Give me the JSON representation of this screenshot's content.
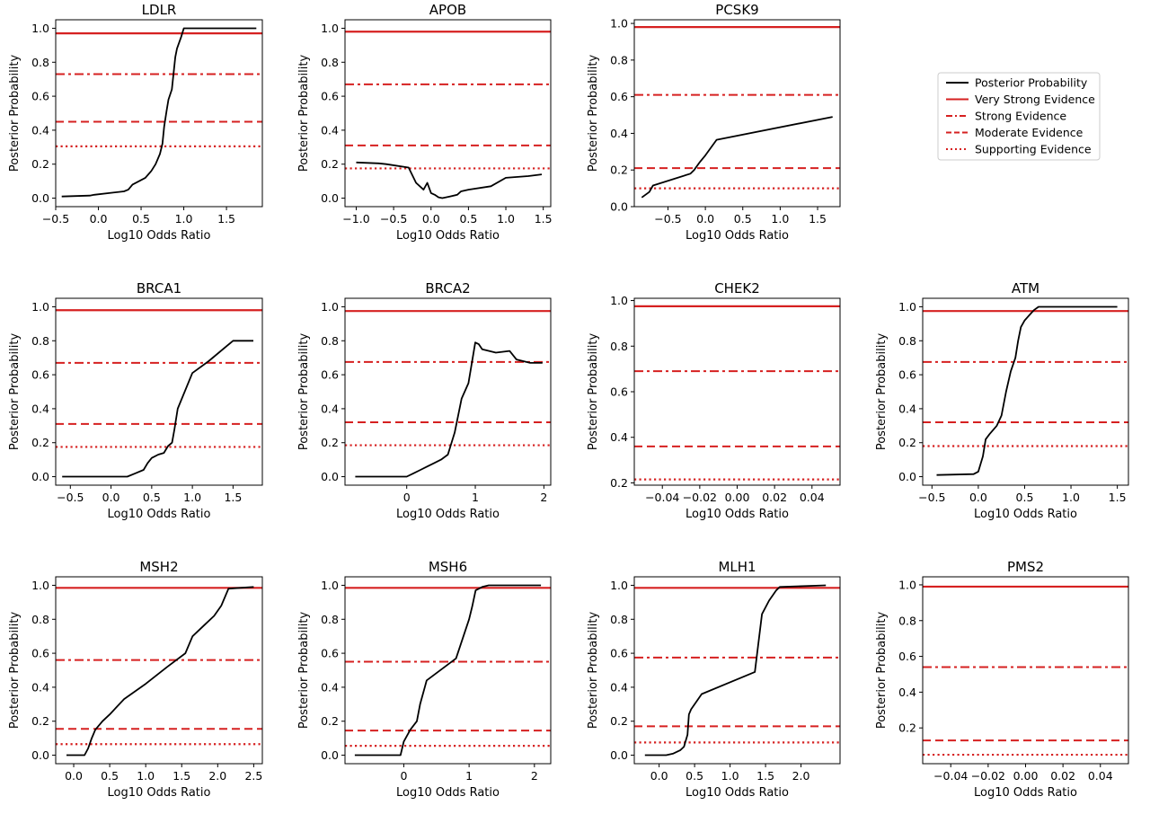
{
  "figure": {
    "legend": [
      {
        "label": "Posterior Probability",
        "color": "#000000",
        "style": "solid"
      },
      {
        "label": "Very Strong Evidence",
        "color": "#d62020",
        "style": "solid"
      },
      {
        "label": "Strong Evidence",
        "color": "#d62020",
        "style": "dashdot"
      },
      {
        "label": "Moderate Evidence",
        "color": "#d62020",
        "style": "dashed"
      },
      {
        "label": "Supporting Evidence",
        "color": "#d62020",
        "style": "dotted"
      }
    ],
    "legend_position": "right of top row"
  },
  "chart_data": [
    {
      "type": "line",
      "title": "LDLR",
      "xlabel": "Log10 Odds Ratio",
      "ylabel": "Posterior Probability",
      "xlim": [
        -0.5,
        1.92
      ],
      "ylim": [
        -0.05,
        1.05
      ],
      "xticks": [
        -0.5,
        0.0,
        0.5,
        1.0,
        1.5
      ],
      "xtick_labels": [
        "−0.5",
        "0.0",
        "0.5",
        "1.0",
        "1.5"
      ],
      "yticks": [
        0.0,
        0.2,
        0.4,
        0.6,
        0.8,
        1.0
      ],
      "ytick_labels": [
        "0.0",
        "0.2",
        "0.4",
        "0.6",
        "0.8",
        "1.0"
      ],
      "thresholds": {
        "very_strong": 0.97,
        "strong": 0.73,
        "moderate": 0.45,
        "supporting": 0.305
      },
      "series": [
        {
          "x": [
            -0.43,
            -0.1,
            -0.05,
            0.3,
            0.35,
            0.4,
            0.55,
            0.62,
            0.67,
            0.72,
            0.75,
            0.77,
            0.8,
            0.82,
            0.86,
            0.9,
            0.92,
            0.97,
            1.0,
            1.85
          ],
          "y": [
            0.01,
            0.015,
            0.02,
            0.04,
            0.05,
            0.08,
            0.12,
            0.16,
            0.2,
            0.26,
            0.32,
            0.42,
            0.52,
            0.58,
            0.64,
            0.83,
            0.88,
            0.95,
            1.0,
            1.0
          ]
        }
      ]
    },
    {
      "type": "line",
      "title": "APOB",
      "xlabel": "Log10 Odds Ratio",
      "ylabel": "Posterior Probability",
      "xlim": [
        -1.15,
        1.6
      ],
      "ylim": [
        -0.05,
        1.05
      ],
      "xticks": [
        -1.0,
        -0.5,
        0.0,
        0.5,
        1.0,
        1.5
      ],
      "xtick_labels": [
        "−1.0",
        "−0.5",
        "0.0",
        "0.5",
        "1.0",
        "1.5"
      ],
      "yticks": [
        0.0,
        0.2,
        0.4,
        0.6,
        0.8,
        1.0
      ],
      "ytick_labels": [
        "0.0",
        "0.2",
        "0.4",
        "0.6",
        "0.8",
        "1.0"
      ],
      "thresholds": {
        "very_strong": 0.98,
        "strong": 0.67,
        "moderate": 0.31,
        "supporting": 0.175
      },
      "series": [
        {
          "x": [
            -1.0,
            -0.7,
            -0.6,
            -0.3,
            -0.2,
            -0.1,
            -0.05,
            0.0,
            0.05,
            0.1,
            0.15,
            0.25,
            0.35,
            0.4,
            0.5,
            0.8,
            1.0,
            1.3,
            1.48
          ],
          "y": [
            0.21,
            0.205,
            0.2,
            0.18,
            0.09,
            0.05,
            0.09,
            0.03,
            0.02,
            0.005,
            0.0,
            0.01,
            0.02,
            0.04,
            0.05,
            0.07,
            0.12,
            0.13,
            0.14
          ]
        }
      ]
    },
    {
      "type": "line",
      "title": "PCSK9",
      "xlabel": "Log10 Odds Ratio",
      "ylabel": "Posterior Probability",
      "xlim": [
        -0.95,
        1.8
      ],
      "ylim": [
        0.0,
        1.02
      ],
      "xticks": [
        -0.5,
        0.0,
        0.5,
        1.0,
        1.5
      ],
      "xtick_labels": [
        "−0.5",
        "0.0",
        "0.5",
        "1.0",
        "1.5"
      ],
      "yticks": [
        0.0,
        0.2,
        0.4,
        0.6,
        0.8,
        1.0
      ],
      "ytick_labels": [
        "0.0",
        "0.2",
        "0.4",
        "0.6",
        "0.8",
        "1.0"
      ],
      "thresholds": {
        "very_strong": 0.98,
        "strong": 0.61,
        "moderate": 0.21,
        "supporting": 0.1
      },
      "series": [
        {
          "x": [
            -0.85,
            -0.75,
            -0.7,
            -0.2,
            -0.15,
            -0.08,
            0.0,
            0.15,
            1.7
          ],
          "y": [
            0.05,
            0.08,
            0.115,
            0.18,
            0.2,
            0.24,
            0.28,
            0.365,
            0.49
          ]
        }
      ]
    },
    {
      "type": "line",
      "title": "BRCA1",
      "xlabel": "Log10 Odds Ratio",
      "ylabel": "Posterior Probability",
      "xlim": [
        -0.68,
        1.86
      ],
      "ylim": [
        -0.05,
        1.05
      ],
      "xticks": [
        -0.5,
        0.0,
        0.5,
        1.0,
        1.5
      ],
      "xtick_labels": [
        "−0.5",
        "0.0",
        "0.5",
        "1.0",
        "1.5"
      ],
      "yticks": [
        0.0,
        0.2,
        0.4,
        0.6,
        0.8,
        1.0
      ],
      "ytick_labels": [
        "0.0",
        "0.2",
        "0.4",
        "0.6",
        "0.8",
        "1.0"
      ],
      "thresholds": {
        "very_strong": 0.98,
        "strong": 0.67,
        "moderate": 0.31,
        "supporting": 0.175
      },
      "series": [
        {
          "x": [
            -0.6,
            0.2,
            0.3,
            0.4,
            0.45,
            0.5,
            0.58,
            0.65,
            0.7,
            0.75,
            0.78,
            0.82,
            1.0,
            1.2,
            1.5,
            1.75
          ],
          "y": [
            0.0,
            0.0,
            0.02,
            0.04,
            0.08,
            0.11,
            0.13,
            0.14,
            0.18,
            0.2,
            0.28,
            0.4,
            0.61,
            0.68,
            0.8,
            0.8
          ]
        }
      ]
    },
    {
      "type": "line",
      "title": "BRCA2",
      "xlabel": "Log10 Odds Ratio",
      "ylabel": "Posterior Probability",
      "xlim": [
        -0.9,
        2.1
      ],
      "ylim": [
        -0.05,
        1.05
      ],
      "xticks": [
        0,
        1,
        2
      ],
      "xtick_labels": [
        "0",
        "1",
        "2"
      ],
      "yticks": [
        0.0,
        0.2,
        0.4,
        0.6,
        0.8,
        1.0
      ],
      "ytick_labels": [
        "0.0",
        "0.2",
        "0.4",
        "0.6",
        "0.8",
        "1.0"
      ],
      "thresholds": {
        "very_strong": 0.975,
        "strong": 0.675,
        "moderate": 0.32,
        "supporting": 0.185
      },
      "series": [
        {
          "x": [
            -0.75,
            0.0,
            0.1,
            0.2,
            0.3,
            0.4,
            0.5,
            0.6,
            0.7,
            0.8,
            0.9,
            1.0,
            1.05,
            1.1,
            1.2,
            1.3,
            1.5,
            1.6,
            1.8,
            1.98
          ],
          "y": [
            0.0,
            0.0,
            0.02,
            0.04,
            0.06,
            0.08,
            0.1,
            0.13,
            0.26,
            0.46,
            0.55,
            0.79,
            0.78,
            0.75,
            0.74,
            0.73,
            0.74,
            0.69,
            0.67,
            0.67
          ]
        }
      ]
    },
    {
      "type": "line",
      "title": "CHEK2",
      "xlabel": "Log10 Odds Ratio",
      "ylabel": "Posterior Probability",
      "xlim": [
        -0.055,
        0.055
      ],
      "ylim": [
        0.19,
        1.01
      ],
      "xticks": [
        -0.04,
        -0.02,
        0.0,
        0.02,
        0.04
      ],
      "xtick_labels": [
        "−0.04",
        "−0.02",
        "0.00",
        "0.02",
        "0.04"
      ],
      "yticks": [
        0.2,
        0.4,
        0.6,
        0.8,
        1.0
      ],
      "ytick_labels": [
        "0.2",
        "0.4",
        "0.6",
        "0.8",
        "1.0"
      ],
      "thresholds": {
        "very_strong": 0.975,
        "strong": 0.69,
        "moderate": 0.36,
        "supporting": 0.215
      },
      "series": []
    },
    {
      "type": "line",
      "title": "ATM",
      "xlabel": "Log10 Odds Ratio",
      "ylabel": "Posterior Probability",
      "xlim": [
        -0.6,
        1.62
      ],
      "ylim": [
        -0.05,
        1.05
      ],
      "xticks": [
        -0.5,
        0.0,
        0.5,
        1.0,
        1.5
      ],
      "xtick_labels": [
        "−0.5",
        "0.0",
        "0.5",
        "1.0",
        "1.5"
      ],
      "yticks": [
        0.0,
        0.2,
        0.4,
        0.6,
        0.8,
        1.0
      ],
      "ytick_labels": [
        "0.0",
        "0.2",
        "0.4",
        "0.6",
        "0.8",
        "1.0"
      ],
      "thresholds": {
        "very_strong": 0.975,
        "strong": 0.675,
        "moderate": 0.32,
        "supporting": 0.18
      },
      "series": [
        {
          "x": [
            -0.45,
            -0.05,
            0.0,
            0.05,
            0.08,
            0.12,
            0.2,
            0.25,
            0.3,
            0.35,
            0.4,
            0.43,
            0.46,
            0.5,
            0.55,
            0.6,
            0.65,
            1.5
          ],
          "y": [
            0.01,
            0.015,
            0.03,
            0.12,
            0.22,
            0.25,
            0.3,
            0.36,
            0.5,
            0.62,
            0.7,
            0.8,
            0.88,
            0.92,
            0.95,
            0.98,
            1.0,
            1.0
          ]
        }
      ]
    },
    {
      "type": "line",
      "title": "MSH2",
      "xlabel": "Log10 Odds Ratio",
      "ylabel": "Posterior Probability",
      "xlim": [
        -0.25,
        2.62
      ],
      "ylim": [
        -0.05,
        1.05
      ],
      "xticks": [
        0.0,
        0.5,
        1.0,
        1.5,
        2.0,
        2.5
      ],
      "xtick_labels": [
        "0.0",
        "0.5",
        "1.0",
        "1.5",
        "2.0",
        "2.5"
      ],
      "yticks": [
        0.0,
        0.2,
        0.4,
        0.6,
        0.8,
        1.0
      ],
      "ytick_labels": [
        "0.0",
        "0.2",
        "0.4",
        "0.6",
        "0.8",
        "1.0"
      ],
      "thresholds": {
        "very_strong": 0.985,
        "strong": 0.56,
        "moderate": 0.155,
        "supporting": 0.065
      },
      "series": [
        {
          "x": [
            -0.1,
            0.15,
            0.2,
            0.25,
            0.3,
            0.4,
            0.5,
            0.7,
            1.0,
            1.3,
            1.55,
            1.65,
            1.8,
            1.95,
            2.05,
            2.15,
            2.5
          ],
          "y": [
            0.0,
            0.0,
            0.04,
            0.1,
            0.15,
            0.2,
            0.24,
            0.33,
            0.42,
            0.52,
            0.6,
            0.7,
            0.76,
            0.82,
            0.88,
            0.98,
            0.99
          ]
        }
      ]
    },
    {
      "type": "line",
      "title": "MSH6",
      "xlabel": "Log10 Odds Ratio",
      "ylabel": "Posterior Probability",
      "xlim": [
        -0.9,
        2.25
      ],
      "ylim": [
        -0.05,
        1.05
      ],
      "xticks": [
        0,
        1,
        2
      ],
      "xtick_labels": [
        "0",
        "1",
        "2"
      ],
      "yticks": [
        0.0,
        0.2,
        0.4,
        0.6,
        0.8,
        1.0
      ],
      "ytick_labels": [
        "0.0",
        "0.2",
        "0.4",
        "0.6",
        "0.8",
        "1.0"
      ],
      "thresholds": {
        "very_strong": 0.985,
        "strong": 0.55,
        "moderate": 0.145,
        "supporting": 0.055
      },
      "series": [
        {
          "x": [
            -0.75,
            -0.05,
            0.0,
            0.1,
            0.2,
            0.25,
            0.35,
            0.8,
            1.0,
            1.05,
            1.1,
            1.2,
            1.3,
            2.1
          ],
          "y": [
            0.0,
            0.0,
            0.08,
            0.15,
            0.2,
            0.3,
            0.44,
            0.57,
            0.8,
            0.88,
            0.97,
            0.99,
            1.0,
            1.0
          ]
        }
      ]
    },
    {
      "type": "line",
      "title": "MLH1",
      "xlabel": "Log10 Odds Ratio",
      "ylabel": "Posterior Probability",
      "xlim": [
        -0.35,
        2.55
      ],
      "ylim": [
        -0.05,
        1.05
      ],
      "xticks": [
        0.0,
        0.5,
        1.0,
        1.5,
        2.0
      ],
      "xtick_labels": [
        "0.0",
        "0.5",
        "1.0",
        "1.5",
        "2.0"
      ],
      "yticks": [
        0.0,
        0.2,
        0.4,
        0.6,
        0.8,
        1.0
      ],
      "ytick_labels": [
        "0.0",
        "0.2",
        "0.4",
        "0.6",
        "0.8",
        "1.0"
      ],
      "thresholds": {
        "very_strong": 0.985,
        "strong": 0.575,
        "moderate": 0.17,
        "supporting": 0.075
      },
      "series": [
        {
          "x": [
            -0.2,
            0.1,
            0.2,
            0.3,
            0.35,
            0.4,
            0.42,
            0.45,
            0.6,
            1.35,
            1.45,
            1.55,
            1.65,
            1.7,
            2.35
          ],
          "y": [
            0.0,
            0.0,
            0.01,
            0.03,
            0.05,
            0.12,
            0.24,
            0.27,
            0.36,
            0.49,
            0.83,
            0.91,
            0.97,
            0.99,
            1.0
          ]
        }
      ]
    },
    {
      "type": "line",
      "title": "PMS2",
      "xlabel": "Log10 Odds Ratio",
      "ylabel": "Posterior Probability",
      "xlim": [
        -0.055,
        0.055
      ],
      "ylim": [
        0.0,
        1.045
      ],
      "xticks": [
        -0.04,
        -0.02,
        0.0,
        0.02,
        0.04
      ],
      "xtick_labels": [
        "−0.04",
        "−0.02",
        "0.00",
        "0.02",
        "0.04"
      ],
      "yticks": [
        0.2,
        0.4,
        0.6,
        0.8,
        1.0
      ],
      "ytick_labels": [
        "0.2",
        "0.4",
        "0.6",
        "0.8",
        "1.0"
      ],
      "thresholds": {
        "very_strong": 0.99,
        "strong": 0.54,
        "moderate": 0.13,
        "supporting": 0.05
      },
      "series": []
    }
  ]
}
